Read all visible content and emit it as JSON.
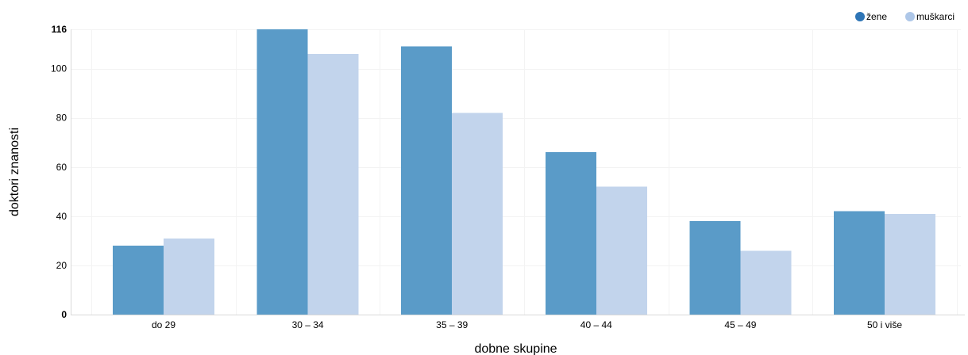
{
  "chart_data": {
    "type": "bar",
    "title": "",
    "xlabel": "dobne skupine",
    "ylabel": "doktori znanosti",
    "categories": [
      "do 29",
      "30 – 34",
      "35 – 39",
      "40 – 44",
      "45 – 49",
      "50 i više"
    ],
    "series": [
      {
        "name": "žene",
        "color": "#5a9bc8",
        "values": [
          28,
          116,
          109,
          66,
          38,
          42
        ]
      },
      {
        "name": "muškarci",
        "color": "#c2d4ec",
        "values": [
          31,
          106,
          82,
          52,
          26,
          41
        ]
      }
    ],
    "ylim": [
      0,
      116
    ],
    "yticks": [
      {
        "value": 0,
        "label": "0",
        "bold": true
      },
      {
        "value": 20,
        "label": "20",
        "bold": false
      },
      {
        "value": 40,
        "label": "40",
        "bold": false
      },
      {
        "value": 60,
        "label": "60",
        "bold": false
      },
      {
        "value": 80,
        "label": "80",
        "bold": false
      },
      {
        "value": 100,
        "label": "100",
        "bold": false
      },
      {
        "value": 116,
        "label": "116",
        "bold": true
      }
    ],
    "grid": true,
    "legend": {
      "position": "top-right",
      "items": [
        {
          "name": "žene",
          "color": "#2e75b6"
        },
        {
          "name": "muškarci",
          "color": "#aec7e8"
        }
      ]
    }
  }
}
